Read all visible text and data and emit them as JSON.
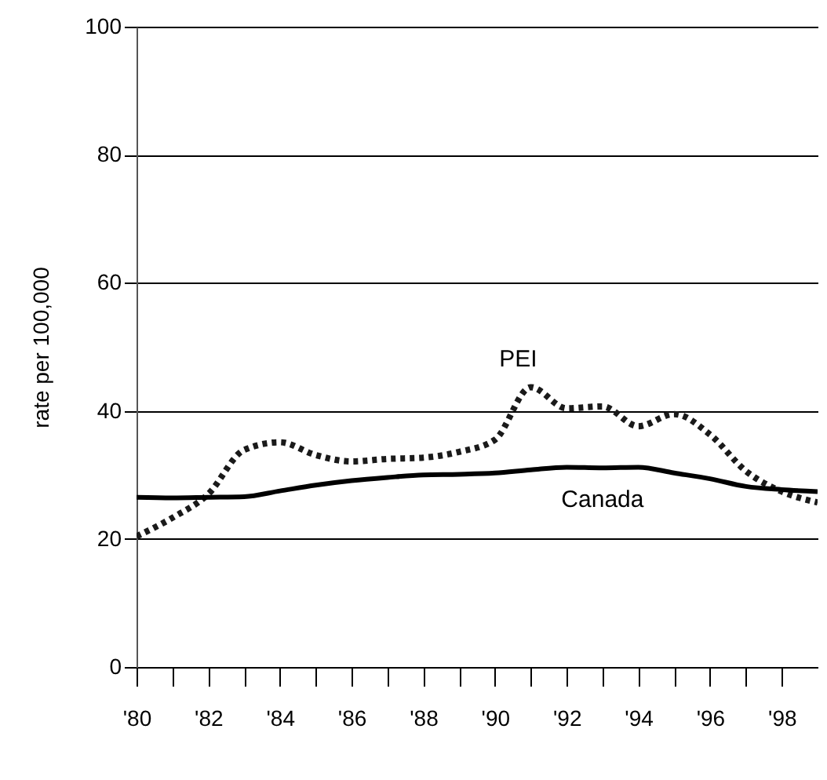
{
  "chart_data": {
    "type": "line",
    "ylabel": "rate per 100,000",
    "x": [
      1980,
      1981,
      1982,
      1983,
      1984,
      1985,
      1986,
      1987,
      1988,
      1989,
      1990,
      1991,
      1992,
      1993,
      1994,
      1995,
      1996,
      1997,
      1998,
      1999
    ],
    "series": [
      {
        "name": "PEI",
        "color": "#1a1a1a",
        "line_style": "dotted",
        "values": [
          20.4,
          23.3,
          27,
          33.9,
          35.1,
          33.1,
          32.1,
          32.5,
          32.7,
          33.6,
          35.5,
          43.7,
          40.4,
          40.7,
          37.6,
          39.5,
          36.3,
          30.6,
          27.4,
          25.7
        ]
      },
      {
        "name": "Canada",
        "color": "#000000",
        "line_style": "solid",
        "values": [
          26.5,
          26.4,
          26.5,
          26.6,
          27.5,
          28.4,
          29.1,
          29.6,
          30,
          30.1,
          30.3,
          30.8,
          31.2,
          31.1,
          31.2,
          30.3,
          29.4,
          28.2,
          27.7,
          27.4
        ]
      }
    ],
    "xlim": [
      1980,
      1999
    ],
    "xticks": [
      {
        "value": 1980,
        "label": "'80"
      },
      {
        "value": 1981,
        "label": null
      },
      {
        "value": 1982,
        "label": "'82"
      },
      {
        "value": 1983,
        "label": null
      },
      {
        "value": 1984,
        "label": "'84"
      },
      {
        "value": 1985,
        "label": null
      },
      {
        "value": 1986,
        "label": "'86"
      },
      {
        "value": 1987,
        "label": null
      },
      {
        "value": 1988,
        "label": "'88"
      },
      {
        "value": 1989,
        "label": null
      },
      {
        "value": 1990,
        "label": "'90"
      },
      {
        "value": 1991,
        "label": null
      },
      {
        "value": 1992,
        "label": "'92"
      },
      {
        "value": 1993,
        "label": null
      },
      {
        "value": 1994,
        "label": "'94"
      },
      {
        "value": 1995,
        "label": null
      },
      {
        "value": 1996,
        "label": "'96"
      },
      {
        "value": 1997,
        "label": null
      },
      {
        "value": 1998,
        "label": "'98"
      }
    ],
    "ylim": [
      0,
      100
    ],
    "yticks": [
      0,
      20,
      40,
      60,
      80,
      100
    ],
    "grid": "y"
  }
}
